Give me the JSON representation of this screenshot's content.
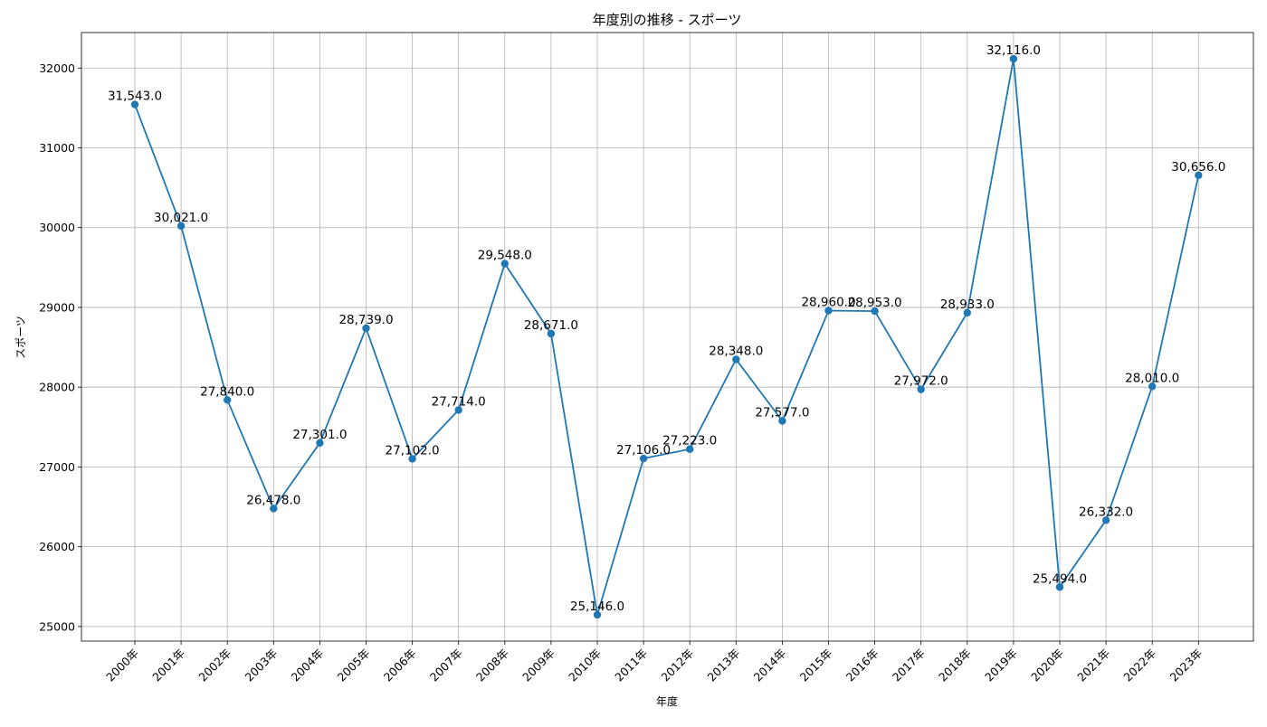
{
  "chart_data": {
    "type": "line",
    "title": "年度別の推移 - スポーツ",
    "xlabel": "年度",
    "ylabel": "スポーツ",
    "categories": [
      "2000年",
      "2001年",
      "2002年",
      "2003年",
      "2004年",
      "2005年",
      "2006年",
      "2007年",
      "2008年",
      "2009年",
      "2010年",
      "2011年",
      "2012年",
      "2013年",
      "2014年",
      "2015年",
      "2016年",
      "2017年",
      "2018年",
      "2019年",
      "2020年",
      "2021年",
      "2022年",
      "2023年"
    ],
    "series": [
      {
        "values": [
          31543,
          30021,
          27840,
          26478,
          27301,
          28739,
          27102,
          27714,
          29548,
          28671,
          25146,
          27106,
          27223,
          28348,
          27577,
          28960,
          28953,
          27972,
          28933,
          32116,
          25494,
          26332,
          28010,
          30656
        ],
        "point_labels": [
          "31,543.0",
          "30,021.0",
          "27,840.0",
          "26,478.0",
          "27,301.0",
          "28,739.0",
          "27,102.0",
          "27,714.0",
          "29,548.0",
          "28,671.0",
          "25,146.0",
          "27,106.0",
          "27,223.0",
          "28,348.0",
          "27,577.0",
          "28,960.0",
          "28,953.0",
          "27,972.0",
          "28,933.0",
          "32,116.0",
          "25,494.0",
          "26,332.0",
          "28,010.0",
          "30,656.0"
        ]
      }
    ],
    "yticks": [
      25000,
      26000,
      27000,
      28000,
      29000,
      30000,
      31000,
      32000
    ],
    "ytick_labels": [
      "25000",
      "26000",
      "27000",
      "28000",
      "29000",
      "30000",
      "31000",
      "32000"
    ],
    "ylim": [
      24817,
      32445
    ],
    "grid": true,
    "color": "#1f77b4"
  }
}
